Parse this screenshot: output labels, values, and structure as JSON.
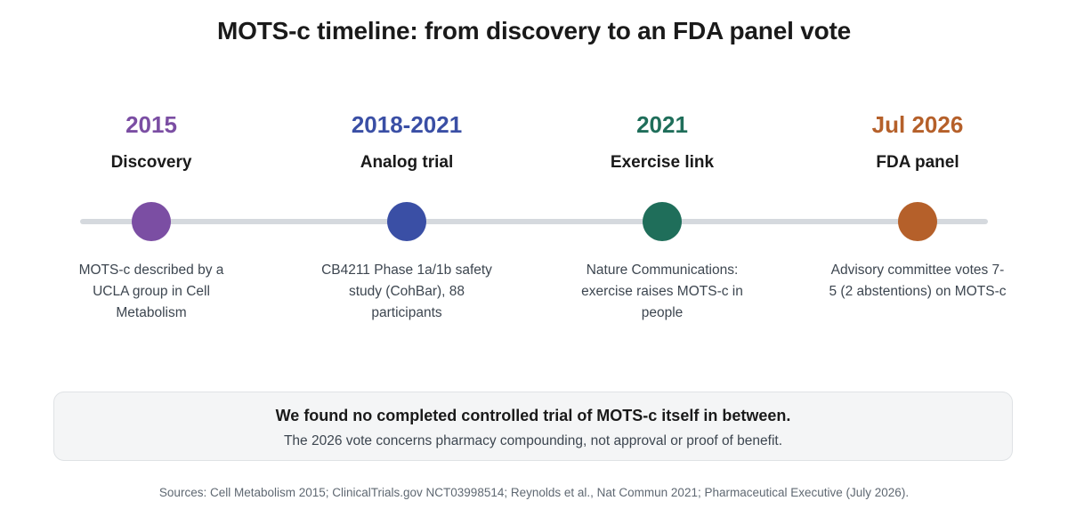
{
  "title": "MOTS-c timeline: from discovery to an FDA panel vote",
  "events": [
    {
      "year": "2015",
      "label": "Discovery",
      "description": "MOTS-c described by a UCLA group in Cell Metabolism",
      "color": "#7b4ea3"
    },
    {
      "year": "2018-2021",
      "label": "Analog trial",
      "description": "CB4211 Phase 1a/1b safety study (CohBar), 88 participants",
      "color": "#3a4fa5"
    },
    {
      "year": "2021",
      "label": "Exercise link",
      "description": "Nature Communications: exercise raises MOTS-c in people",
      "color": "#1f6e5a"
    },
    {
      "year": "Jul 2026",
      "label": "FDA panel",
      "description": "Advisory committee votes 7-5 (2 abstentions) on MOTS-c",
      "color": "#b5602a"
    }
  ],
  "callout": {
    "headline": "We found no completed controlled trial of MOTS-c itself in between.",
    "subtext": "The 2026 vote concerns pharmacy compounding, not approval or proof of benefit."
  },
  "sources": "Sources: Cell Metabolism 2015; ClinicalTrials.gov NCT03998514; Reynolds et al., Nat Commun 2021; Pharmaceutical Executive (July 2026).",
  "colors": {
    "line": "#d5d9de",
    "callout_background": "#f4f5f6"
  }
}
